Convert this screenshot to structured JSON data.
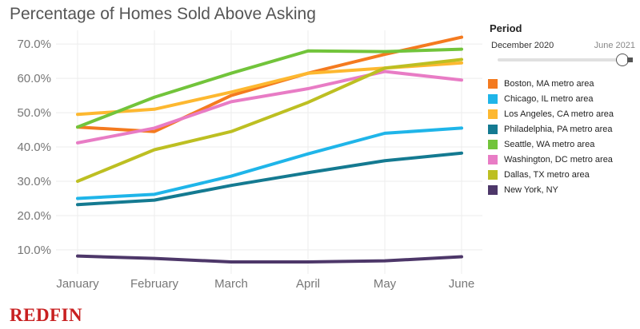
{
  "title": "Percentage of Homes Sold Above Asking",
  "period": {
    "label": "Period",
    "start": "December 2020",
    "end": "June 2021",
    "selected_fraction": 1.0
  },
  "brand": {
    "logo_text": "REDFIN",
    "color": "#c82021"
  },
  "chart_data": {
    "type": "line",
    "title": "Percentage of Homes Sold Above Asking",
    "xlabel": "",
    "ylabel": "",
    "categories": [
      "January",
      "February",
      "March",
      "April",
      "May",
      "June"
    ],
    "y_ticks": [
      "10.0%",
      "20.0%",
      "30.0%",
      "40.0%",
      "50.0%",
      "60.0%",
      "70.0%"
    ],
    "y_tick_values": [
      10,
      20,
      30,
      40,
      50,
      60,
      70
    ],
    "ylim": [
      3,
      74
    ],
    "grid": true,
    "legend_position": "right",
    "series": [
      {
        "name": "Boston, MA metro area",
        "color": "#f47a1f",
        "values": [
          45.8,
          44.5,
          55.0,
          61.5,
          67.0,
          72.0
        ]
      },
      {
        "name": "Chicago, IL metro area",
        "color": "#1fb5e9",
        "values": [
          25.0,
          26.2,
          31.5,
          38.0,
          44.0,
          45.5
        ]
      },
      {
        "name": "Los Angeles, CA metro area",
        "color": "#fdb830",
        "values": [
          49.5,
          51.0,
          56.0,
          61.5,
          63.0,
          64.5
        ]
      },
      {
        "name": "Philadelphia, PA metro area",
        "color": "#147a91",
        "values": [
          23.2,
          24.5,
          28.8,
          32.5,
          36.0,
          38.2
        ]
      },
      {
        "name": "Seattle, WA metro area",
        "color": "#72c43b",
        "values": [
          45.8,
          54.5,
          61.5,
          68.0,
          67.8,
          68.5
        ]
      },
      {
        "name": "Washington, DC metro area",
        "color": "#e87cc5",
        "values": [
          41.2,
          45.5,
          53.2,
          57.0,
          62.0,
          59.5
        ]
      },
      {
        "name": "Dallas, TX metro area",
        "color": "#bdbf22",
        "values": [
          30.0,
          39.2,
          44.5,
          53.0,
          63.0,
          65.5
        ]
      },
      {
        "name": "New York, NY",
        "color": "#4d3769",
        "values": [
          8.2,
          7.5,
          6.5,
          6.5,
          6.8,
          8.0
        ]
      }
    ]
  }
}
